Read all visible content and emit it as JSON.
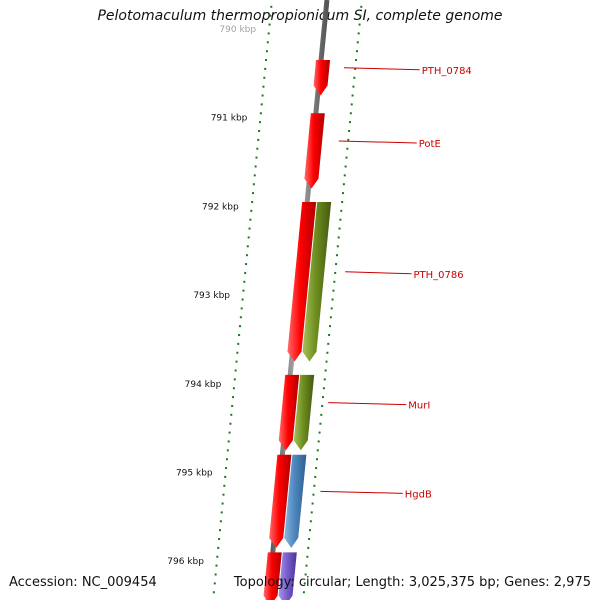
{
  "title": "Pelotomaculum thermopropionicum SI, complete genome",
  "footer": {
    "accession": "Accession: NC_009454",
    "topology": "Topology: circular; Length: 3,025,375 bp; Genes: 2,975"
  },
  "colors": {
    "red_gene": "#ff1010",
    "olive_gene": "#6f8f20",
    "blue_gene": "#4f88bf",
    "purple_gene": "#7a5fcf",
    "backbone": "#777777",
    "ticks": "#1a7a1a",
    "label": "#cc0000"
  },
  "scale": {
    "ticks": [
      {
        "label": "790 kbp",
        "kbp": 790,
        "faded": true
      },
      {
        "label": "791 kbp",
        "kbp": 791
      },
      {
        "label": "792 kbp",
        "kbp": 792
      },
      {
        "label": "793 kbp",
        "kbp": 793
      },
      {
        "label": "794 kbp",
        "kbp": 794
      },
      {
        "label": "795 kbp",
        "kbp": 795
      },
      {
        "label": "796 kbp",
        "kbp": 796
      }
    ]
  },
  "genes": [
    {
      "name": "PTH_0784",
      "start_kbp": 790.35,
      "end_kbp": 790.75,
      "strand": "+",
      "color": "red",
      "labeled": true
    },
    {
      "name": "PotE",
      "start_kbp": 790.95,
      "end_kbp": 791.8,
      "strand": "+",
      "color": "red",
      "labeled": true
    },
    {
      "name": "",
      "start_kbp": 791.95,
      "end_kbp": 793.75,
      "strand": "+",
      "color": "red",
      "labeled": false
    },
    {
      "name": "PTH_0786",
      "start_kbp": 791.95,
      "end_kbp": 793.75,
      "strand": "+",
      "color": "olive",
      "labeled": true
    },
    {
      "name": "",
      "start_kbp": 793.9,
      "end_kbp": 794.75,
      "strand": "+",
      "color": "red",
      "labeled": false
    },
    {
      "name": "MurI",
      "start_kbp": 793.9,
      "end_kbp": 794.75,
      "strand": "+",
      "color": "olive",
      "labeled": true
    },
    {
      "name": "",
      "start_kbp": 794.8,
      "end_kbp": 795.85,
      "strand": "+",
      "color": "red",
      "labeled": false
    },
    {
      "name": "HgdB",
      "start_kbp": 794.8,
      "end_kbp": 795.85,
      "strand": "+",
      "color": "blue",
      "labeled": true
    },
    {
      "name": "",
      "start_kbp": 795.9,
      "end_kbp": 796.5,
      "strand": "+",
      "color": "red",
      "labeled": false
    },
    {
      "name": "",
      "start_kbp": 795.9,
      "end_kbp": 796.5,
      "strand": "+",
      "color": "purple",
      "labeled": false
    }
  ]
}
